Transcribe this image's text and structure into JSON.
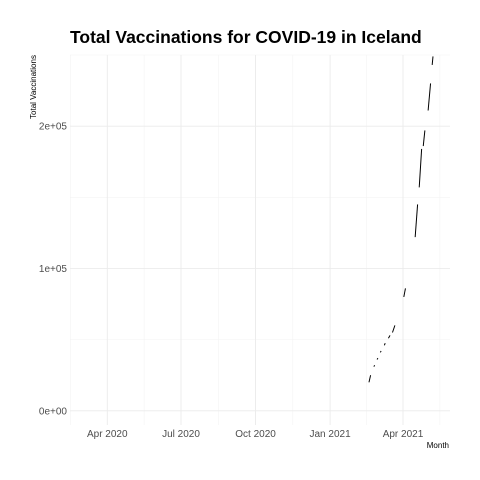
{
  "chart_data": {
    "type": "line",
    "title": "Total Vaccinations for COVID-19 in Iceland",
    "xlabel": "Month",
    "ylabel": "Total Vaccinations",
    "x_tick_labels": [
      "Apr 2020",
      "Jul 2020",
      "Oct 2020",
      "Jan 2021",
      "Apr 2021"
    ],
    "x_ticks": [
      "2020-04-01",
      "2020-07-01",
      "2020-10-01",
      "2021-01-01",
      "2021-04-01"
    ],
    "xlim": [
      "2020-02-15",
      "2021-05-29"
    ],
    "y_tick_labels": [
      "0e+00",
      "1e+05",
      "2e+05"
    ],
    "y_ticks": [
      0,
      100000,
      200000
    ],
    "ylim": [
      -10000,
      250000
    ],
    "grid": true,
    "legend": "none",
    "series": [
      {
        "segments": [
          {
            "x": [
              "2021-02-18",
              "2021-02-20"
            ],
            "y": [
              20000,
              25000
            ]
          },
          {
            "x": [
              "2021-02-24",
              "2021-02-25"
            ],
            "y": [
              31000,
              32000
            ]
          },
          {
            "x": [
              "2021-02-28",
              "2021-03-01"
            ],
            "y": [
              36000,
              37000
            ]
          },
          {
            "x": [
              "2021-03-04",
              "2021-03-05"
            ],
            "y": [
              41000,
              42000
            ]
          },
          {
            "x": [
              "2021-03-09",
              "2021-03-10"
            ],
            "y": [
              46000,
              47500
            ]
          },
          {
            "x": [
              "2021-03-14",
              "2021-03-16"
            ],
            "y": [
              51000,
              53000
            ]
          },
          {
            "x": [
              "2021-03-19",
              "2021-03-22"
            ],
            "y": [
              55000,
              60000
            ]
          },
          {
            "x": [
              "2021-04-02",
              "2021-04-04"
            ],
            "y": [
              80000,
              86000
            ]
          },
          {
            "x": [
              "2021-04-16",
              "2021-04-19"
            ],
            "y": [
              122000,
              145000
            ]
          },
          {
            "x": [
              "2021-04-21",
              "2021-04-24"
            ],
            "y": [
              157000,
              184000
            ]
          },
          {
            "x": [
              "2021-04-26",
              "2021-04-28"
            ],
            "y": [
              186000,
              197000
            ]
          },
          {
            "x": [
              "2021-05-02",
              "2021-05-05"
            ],
            "y": [
              211000,
              230000
            ]
          },
          {
            "x": [
              "2021-05-07",
              "2021-05-08"
            ],
            "y": [
              243000,
              249000
            ]
          }
        ]
      }
    ]
  }
}
